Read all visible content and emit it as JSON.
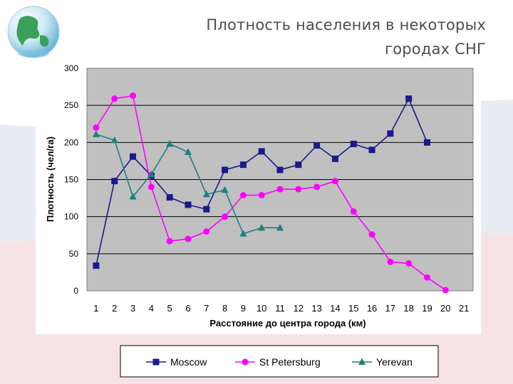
{
  "slide": {
    "title_line1": "Плотность населения в некоторых",
    "title_line2": "городах СНГ",
    "logo_icon": "globe-icon"
  },
  "chart_data": {
    "type": "line",
    "title": "Плотность населения в некоторых городах СНГ",
    "xlabel": "Расстояние до центра города (км)",
    "ylabel": "Плотность (чел/га)",
    "categories": [
      "1",
      "2",
      "3",
      "4",
      "5",
      "6",
      "7",
      "8",
      "9",
      "10",
      "11",
      "12",
      "13",
      "14",
      "15",
      "16",
      "17",
      "18",
      "19",
      "20",
      "21"
    ],
    "ylim": [
      0,
      300
    ],
    "yticks": [
      "0",
      "50",
      "100",
      "150",
      "200",
      "250",
      "300"
    ],
    "grid": true,
    "legend_position": "bottom",
    "series": [
      {
        "name": "Moscow",
        "color": "#1a1a8c",
        "marker": "square",
        "values": [
          34,
          148,
          181,
          155,
          126,
          116,
          110,
          163,
          170,
          188,
          163,
          170,
          196,
          178,
          198,
          190,
          212,
          259,
          200,
          null,
          null
        ]
      },
      {
        "name": "St Petersburg",
        "color": "#ff00ff",
        "marker": "circle",
        "values": [
          220,
          259,
          263,
          140,
          67,
          70,
          80,
          100,
          129,
          129,
          137,
          137,
          140,
          148,
          107,
          76,
          39,
          37,
          18,
          1,
          null
        ]
      },
      {
        "name": "Yerevan",
        "color": "#1f7f7f",
        "marker": "triangle",
        "values": [
          211,
          203,
          127,
          157,
          198,
          187,
          130,
          136,
          77,
          85,
          85,
          null,
          null,
          null,
          null,
          null,
          null,
          null,
          null,
          null,
          null
        ]
      }
    ]
  }
}
